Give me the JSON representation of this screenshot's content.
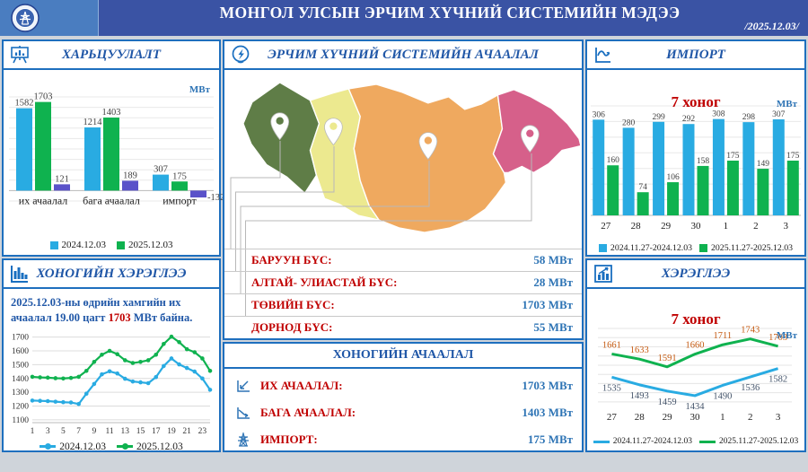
{
  "header": {
    "title": "МОНГОЛ УЛСЫН ЭРЧИМ ХҮЧНИЙ СИСТЕМИЙН МЭДЭЭ",
    "date": "/2025.12.03/"
  },
  "colors": {
    "series_blue": "#29ABE2",
    "series_green": "#0FB24F",
    "series_purple": "#5A52C9",
    "accent_red": "#C00000",
    "value_blue": "#2E74B5",
    "title_blue": "#2057A7",
    "header_bg": "#3A53A4",
    "logo_bg": "#4a7dc0",
    "panel_border": "#1e6fbe",
    "weekly_label_orange": "#C55A11",
    "weekly_label_navy": "#44546A"
  },
  "panels": {
    "comparison": {
      "title": "ХАРЬЦУУЛАЛТ",
      "unit": "МВт"
    },
    "daily": {
      "title": "ХОНОГИЙН ХЭРЭГЛЭЭ",
      "note": {
        "before": "2025.12.03-ны өдрийн хамгийн их ачаалал 19.00 цагт ",
        "highlight": "1703",
        "after": " МВт байна."
      }
    },
    "map": {
      "title": "ЭРЧИМ ХҮЧНИЙ СИСТЕМИЙН АЧААЛАЛ",
      "regions": [
        {
          "name": "БАРУУН БҮС:",
          "value": "58 МВт",
          "color": "#5f7d47"
        },
        {
          "name": "АЛТАЙ- УЛИАСТАЙ БҮС:",
          "value": "28 МВт",
          "color": "#ece98f"
        },
        {
          "name": "ТӨВИЙН БҮС:",
          "value": "1703 МВт",
          "color": "#efa95f"
        },
        {
          "name": "ДОРНОД БҮС:",
          "value": "55 МВт",
          "color": "#d6608a"
        }
      ]
    },
    "load": {
      "title": "ХОНОГИЙН АЧААЛАЛ",
      "rows": [
        {
          "icon": "max-load-trend-icon",
          "label": "ИХ АЧААЛАЛ:",
          "value": "1703 МВт"
        },
        {
          "icon": "min-load-trend-icon",
          "label": "БАГА АЧААЛАЛ:",
          "value": "1403 МВт"
        },
        {
          "icon": "pylon-icon",
          "label": "ИМПОРТ:",
          "value": "175 МВт"
        }
      ]
    },
    "import": {
      "title": "ИМПОРТ",
      "subtitle": "7 хоног",
      "unit": "МВт"
    },
    "weekly": {
      "title": "ХЭРЭГЛЭЭ",
      "subtitle": "7 хоног",
      "unit": "МВт"
    }
  },
  "chart_data": [
    {
      "id": "comparison",
      "type": "bar",
      "title": "ХАРЬЦУУЛАЛТ",
      "unit": "МВт",
      "categories": [
        "их ачаалал",
        "бага ачаалал",
        "импорт"
      ],
      "series": [
        {
          "name": "2024.12.03",
          "color": "#29ABE2",
          "values": [
            1582,
            1214,
            307
          ],
          "legend": true
        },
        {
          "name": "2025.12.03",
          "color": "#0FB24F",
          "values": [
            1703,
            1403,
            175
          ],
          "legend": true
        },
        {
          "name": "",
          "color": "#5A52C9",
          "values": [
            121,
            189,
            -132
          ],
          "legend": false
        }
      ],
      "ylim": [
        -200,
        1800
      ],
      "grid_step": 200,
      "legend_position": "bottom"
    },
    {
      "id": "daily",
      "type": "line",
      "title": "ХОНОГИЙН ХЭРЭГЛЭЭ",
      "note": "2025.12.03-ны өдрийн хамгийн их ачаалал 19.00 цагт 1703 МВт байна.",
      "x": [
        1,
        2,
        3,
        4,
        5,
        6,
        7,
        8,
        9,
        10,
        11,
        12,
        13,
        14,
        15,
        16,
        17,
        18,
        19,
        20,
        21,
        22,
        23,
        24
      ],
      "xticks": [
        1,
        3,
        5,
        7,
        9,
        11,
        13,
        15,
        17,
        19,
        21,
        23
      ],
      "ylim": [
        1100,
        1700
      ],
      "ytick_step": 100,
      "series": [
        {
          "name": "2024.12.03",
          "color": "#29ABE2",
          "values": [
            1240,
            1238,
            1236,
            1232,
            1228,
            1226,
            1215,
            1290,
            1360,
            1430,
            1452,
            1436,
            1398,
            1378,
            1372,
            1366,
            1410,
            1490,
            1545,
            1502,
            1476,
            1450,
            1400,
            1318
          ]
        },
        {
          "name": "2025.12.03",
          "color": "#0FB24F",
          "values": [
            1412,
            1408,
            1406,
            1402,
            1400,
            1404,
            1412,
            1455,
            1520,
            1572,
            1600,
            1576,
            1532,
            1512,
            1520,
            1532,
            1572,
            1650,
            1703,
            1663,
            1612,
            1590,
            1545,
            1455
          ]
        }
      ],
      "legend_position": "bottom"
    },
    {
      "id": "import",
      "type": "bar",
      "title": "ИМПОРТ — 7 хоног",
      "unit": "МВт",
      "categories": [
        "27",
        "28",
        "29",
        "30",
        "1",
        "2",
        "3"
      ],
      "series": [
        {
          "name": "2024.11.27-2024.12.03",
          "color": "#29ABE2",
          "values": [
            306,
            280,
            299,
            292,
            308,
            298,
            307
          ],
          "legend": true
        },
        {
          "name": "2025.11.27-2025.12.03",
          "color": "#0FB24F",
          "values": [
            160,
            74,
            106,
            158,
            175,
            149,
            175
          ],
          "legend": true
        }
      ],
      "ylim": [
        0,
        350
      ],
      "grid_step": 50,
      "legend_position": "bottom"
    },
    {
      "id": "weekly",
      "type": "line",
      "title": "ХЭРЭГЛЭЭ — 7 хоног",
      "unit": "МВт",
      "categories": [
        "27",
        "28",
        "29",
        "30",
        "1",
        "2",
        "3"
      ],
      "ylim": [
        1380,
        1800
      ],
      "grid_step": 50,
      "show_point_labels": true,
      "series": [
        {
          "name": "2024.11.27-2024.12.03",
          "color": "#29ABE2",
          "values": [
            1535,
            1493,
            1459,
            1434,
            1490,
            1536,
            1582
          ],
          "label_color": "#44546A",
          "label_pos": "below"
        },
        {
          "name": "2025.11.27-2025.12.03",
          "color": "#0FB24F",
          "values": [
            1661,
            1633,
            1591,
            1660,
            1711,
            1743,
            1703
          ],
          "label_color": "#C55A11",
          "label_pos": "above"
        }
      ],
      "legend_position": "bottom"
    }
  ]
}
